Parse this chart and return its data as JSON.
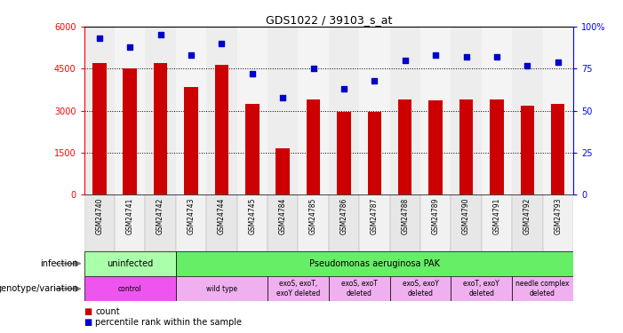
{
  "title": "GDS1022 / 39103_s_at",
  "samples": [
    "GSM24740",
    "GSM24741",
    "GSM24742",
    "GSM24743",
    "GSM24744",
    "GSM24745",
    "GSM24784",
    "GSM24785",
    "GSM24786",
    "GSM24787",
    "GSM24788",
    "GSM24789",
    "GSM24790",
    "GSM24791",
    "GSM24792",
    "GSM24793"
  ],
  "counts": [
    4700,
    4500,
    4700,
    3850,
    4650,
    3250,
    1650,
    3400,
    2950,
    2950,
    3400,
    3380,
    3400,
    3400,
    3170,
    3230
  ],
  "percentiles": [
    93,
    88,
    95,
    83,
    90,
    72,
    58,
    75,
    63,
    68,
    80,
    83,
    82,
    82,
    77,
    79
  ],
  "ylim_left": [
    0,
    6000
  ],
  "ylim_right": [
    0,
    100
  ],
  "yticks_left": [
    0,
    1500,
    3000,
    4500,
    6000
  ],
  "yticks_right": [
    0,
    25,
    50,
    75,
    100
  ],
  "bar_color": "#cc0000",
  "dot_color": "#0000cc",
  "bg_colors": [
    "#d8d8d8",
    "#e8e8e8"
  ],
  "infection_groups": [
    {
      "label": "uninfected",
      "start": 0,
      "end": 3,
      "color": "#aaffaa"
    },
    {
      "label": "Pseudomonas aeruginosa PAK",
      "start": 3,
      "end": 16,
      "color": "#66ee66"
    }
  ],
  "genotype_groups": [
    {
      "label": "control",
      "start": 0,
      "end": 3,
      "color": "#ee55ee"
    },
    {
      "label": "wild type",
      "start": 3,
      "end": 6,
      "color": "#f0b0f0"
    },
    {
      "label": "exoS, exoT,\nexoY deleted",
      "start": 6,
      "end": 8,
      "color": "#f0b0f0"
    },
    {
      "label": "exoS, exoT\ndeleted",
      "start": 8,
      "end": 10,
      "color": "#f0b0f0"
    },
    {
      "label": "exoS, exoY\ndeleted",
      "start": 10,
      "end": 12,
      "color": "#f0b0f0"
    },
    {
      "label": "exoT, exoY\ndeleted",
      "start": 12,
      "end": 14,
      "color": "#f0b0f0"
    },
    {
      "label": "needle complex\ndeleted",
      "start": 14,
      "end": 16,
      "color": "#f0b0f0"
    }
  ],
  "legend_count_color": "#cc0000",
  "legend_pct_color": "#0000cc",
  "legend_count_label": "count",
  "legend_pct_label": "percentile rank within the sample"
}
